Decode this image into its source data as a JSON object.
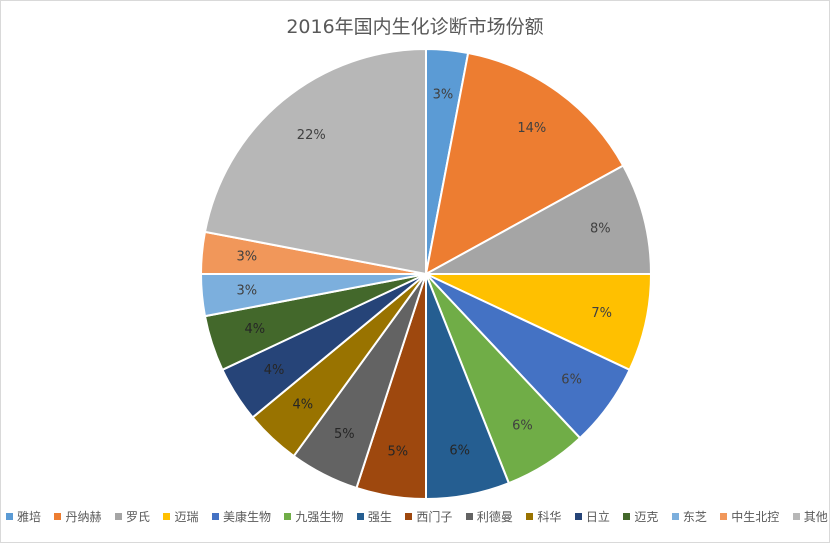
{
  "chart_data": {
    "type": "pie",
    "title": "2016年国内生化诊断市场份额",
    "legend_position": "bottom",
    "slices": [
      {
        "name": "雅培",
        "value": 3,
        "label": "3%",
        "color": "#5b9bd5"
      },
      {
        "name": "丹纳赫",
        "value": 14,
        "label": "14%",
        "color": "#ed7d31"
      },
      {
        "name": "罗氏",
        "value": 8,
        "label": "8%",
        "color": "#a5a5a5"
      },
      {
        "name": "迈瑞",
        "value": 7,
        "label": "7%",
        "color": "#ffc000"
      },
      {
        "name": "美康生物",
        "value": 6,
        "label": "6%",
        "color": "#4472c4"
      },
      {
        "name": "九强生物",
        "value": 6,
        "label": "6%",
        "color": "#70ad47"
      },
      {
        "name": "强生",
        "value": 6,
        "label": "6%",
        "color": "#255e91"
      },
      {
        "name": "西门子",
        "value": 5,
        "label": "5%",
        "color": "#9e480e"
      },
      {
        "name": "利德曼",
        "value": 5,
        "label": "5%",
        "color": "#636363"
      },
      {
        "name": "科华",
        "value": 4,
        "label": "4%",
        "color": "#997300"
      },
      {
        "name": "日立",
        "value": 4,
        "label": "4%",
        "color": "#264478"
      },
      {
        "name": "迈克",
        "value": 4,
        "label": "4%",
        "color": "#43682b"
      },
      {
        "name": "东芝",
        "value": 3,
        "label": "3%",
        "color": "#7cafdd"
      },
      {
        "name": "中生北控",
        "value": 3,
        "label": "3%",
        "color": "#f1975a"
      },
      {
        "name": "其他",
        "value": 22,
        "label": "22%",
        "color": "#b7b7b7"
      }
    ]
  }
}
